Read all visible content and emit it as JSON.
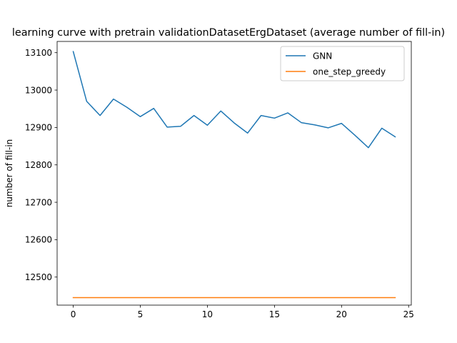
{
  "chart_data": {
    "type": "line",
    "title": "learning curve with pretrain validationDatasetErgDataset (average number of fill-in)",
    "xlabel": "",
    "ylabel": "number of fill-in",
    "xlim": [
      -1.2,
      25.2
    ],
    "ylim": [
      12425,
      13130
    ],
    "xticks": [
      0,
      5,
      10,
      15,
      20,
      25
    ],
    "xtick_labels": [
      "0",
      "5",
      "10",
      "15",
      "20",
      "25"
    ],
    "yticks": [
      12500,
      12600,
      12700,
      12800,
      12900,
      13000,
      13100
    ],
    "ytick_labels": [
      "12500",
      "12600",
      "12700",
      "12800",
      "12900",
      "13000",
      "13100"
    ],
    "grid": false,
    "legend_position": "upper right",
    "x": [
      0,
      1,
      2,
      3,
      4,
      5,
      6,
      7,
      8,
      9,
      10,
      11,
      12,
      13,
      14,
      15,
      16,
      17,
      18,
      19,
      20,
      21,
      22,
      23,
      24
    ],
    "series": [
      {
        "name": "GNN",
        "color": "#1f77b4",
        "values": [
          13103,
          12970,
          12932,
          12976,
          12954,
          12929,
          12951,
          12901,
          12903,
          12932,
          12906,
          12944,
          12912,
          12885,
          12932,
          12925,
          12939,
          12913,
          12907,
          12899,
          12911,
          12879,
          12846,
          12898,
          12875
        ]
      },
      {
        "name": "one_step_greedy",
        "color": "#ff7f0e",
        "values": [
          12445,
          12445,
          12445,
          12445,
          12445,
          12445,
          12445,
          12445,
          12445,
          12445,
          12445,
          12445,
          12445,
          12445,
          12445,
          12445,
          12445,
          12445,
          12445,
          12445,
          12445,
          12445,
          12445,
          12445,
          12445
        ]
      }
    ]
  }
}
